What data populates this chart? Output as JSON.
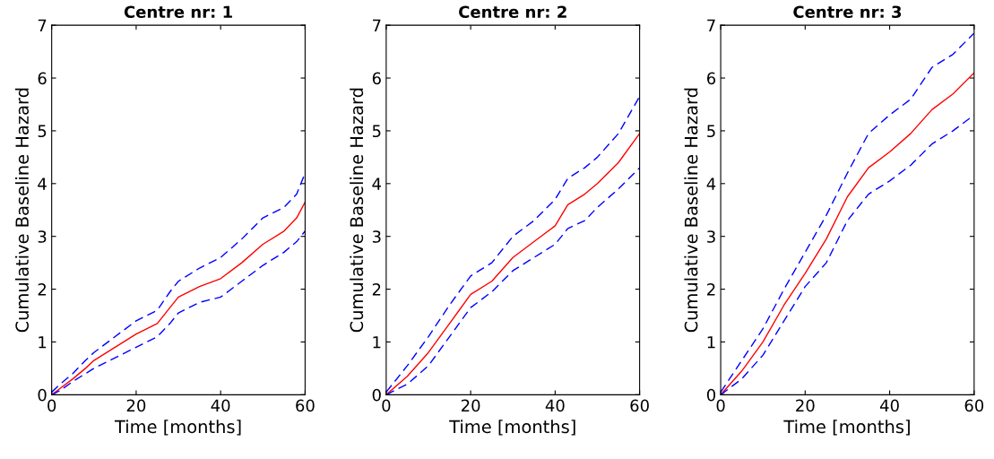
{
  "chart_data": [
    {
      "type": "line",
      "title": "Centre nr: 1",
      "xlabel": "Time [months]",
      "ylabel": "Cumulative Baseline Hazard",
      "xlim": [
        0,
        60
      ],
      "ylim": [
        0,
        7
      ],
      "xticks": [
        0,
        20,
        40,
        60
      ],
      "yticks": [
        0,
        1,
        2,
        3,
        4,
        5,
        6,
        7
      ],
      "grid": false,
      "legend": false,
      "marker": "none",
      "x": [
        0,
        2,
        5,
        8,
        10,
        15,
        20,
        25,
        28,
        30,
        35,
        40,
        45,
        50,
        55,
        58,
        60
      ],
      "series": [
        {
          "color": "#ff0000",
          "line_style": "solid",
          "values": [
            0,
            0.12,
            0.3,
            0.5,
            0.65,
            0.9,
            1.15,
            1.35,
            1.65,
            1.85,
            2.05,
            2.2,
            2.5,
            2.85,
            3.1,
            3.35,
            3.65
          ]
        },
        {
          "color": "#0000ff",
          "line_style": "dashed",
          "values": [
            0.05,
            0.2,
            0.4,
            0.65,
            0.8,
            1.1,
            1.4,
            1.6,
            1.95,
            2.15,
            2.4,
            2.6,
            2.95,
            3.35,
            3.55,
            3.8,
            4.2
          ]
        },
        {
          "color": "#0000ff",
          "line_style": "dashed",
          "values": [
            0,
            0.08,
            0.25,
            0.4,
            0.5,
            0.7,
            0.9,
            1.1,
            1.35,
            1.55,
            1.75,
            1.85,
            2.15,
            2.45,
            2.7,
            2.9,
            3.1
          ]
        }
      ]
    },
    {
      "type": "line",
      "title": "Centre nr: 2",
      "xlabel": "Time [months]",
      "ylabel": "Cumulative Baseline Hazard",
      "xlim": [
        0,
        60
      ],
      "ylim": [
        0,
        7
      ],
      "xticks": [
        0,
        20,
        40,
        60
      ],
      "yticks": [
        0,
        1,
        2,
        3,
        4,
        5,
        6,
        7
      ],
      "grid": false,
      "legend": false,
      "marker": "none",
      "x": [
        0,
        5,
        10,
        15,
        20,
        25,
        30,
        35,
        40,
        43,
        47,
        50,
        55,
        60
      ],
      "series": [
        {
          "color": "#ff0000",
          "line_style": "solid",
          "values": [
            0,
            0.35,
            0.8,
            1.35,
            1.9,
            2.15,
            2.6,
            2.9,
            3.2,
            3.6,
            3.8,
            4.0,
            4.4,
            4.95
          ]
        },
        {
          "color": "#0000ff",
          "line_style": "dashed",
          "values": [
            0.05,
            0.55,
            1.1,
            1.7,
            2.25,
            2.5,
            3.0,
            3.3,
            3.7,
            4.1,
            4.3,
            4.5,
            4.95,
            5.65
          ]
        },
        {
          "color": "#0000ff",
          "line_style": "dashed",
          "values": [
            0,
            0.2,
            0.55,
            1.1,
            1.65,
            1.95,
            2.35,
            2.6,
            2.85,
            3.15,
            3.3,
            3.55,
            3.9,
            4.3
          ]
        }
      ]
    },
    {
      "type": "line",
      "title": "Centre nr: 3",
      "xlabel": "Time [months]",
      "ylabel": "Cumulative Baseline Hazard",
      "xlim": [
        0,
        60
      ],
      "ylim": [
        0,
        7
      ],
      "xticks": [
        0,
        20,
        40,
        60
      ],
      "yticks": [
        0,
        1,
        2,
        3,
        4,
        5,
        6,
        7
      ],
      "grid": false,
      "legend": false,
      "marker": "none",
      "x": [
        0,
        5,
        10,
        15,
        20,
        25,
        30,
        35,
        40,
        45,
        50,
        55,
        60
      ],
      "series": [
        {
          "color": "#ff0000",
          "line_style": "solid",
          "values": [
            0,
            0.45,
            1.0,
            1.7,
            2.3,
            2.95,
            3.75,
            4.3,
            4.6,
            4.95,
            5.4,
            5.7,
            6.1
          ]
        },
        {
          "color": "#0000ff",
          "line_style": "dashed",
          "values": [
            0.05,
            0.65,
            1.25,
            2.0,
            2.7,
            3.4,
            4.2,
            4.95,
            5.3,
            5.6,
            6.2,
            6.45,
            6.85
          ]
        },
        {
          "color": "#0000ff",
          "line_style": "dashed",
          "values": [
            0,
            0.3,
            0.75,
            1.4,
            2.05,
            2.5,
            3.3,
            3.8,
            4.05,
            4.35,
            4.75,
            5.0,
            5.3
          ]
        }
      ]
    }
  ]
}
